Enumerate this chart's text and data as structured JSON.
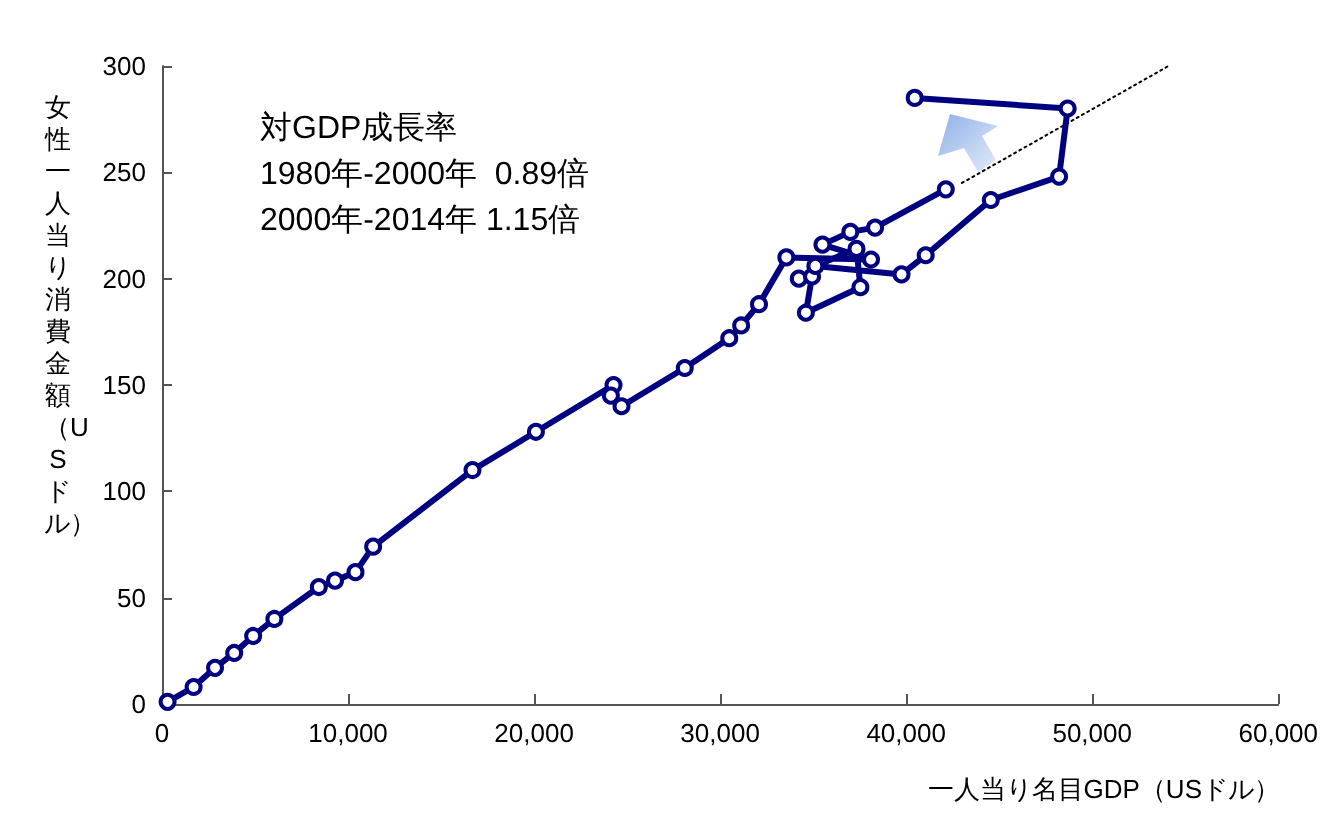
{
  "chart_data": {
    "type": "line",
    "xlabel": "一人当り名目GDP（USドル）",
    "ylabel": "女性一人当り消費金額（USドル）",
    "annotations": [
      "対GDP成長率",
      "1980年-2000年  0.89倍",
      "2000年-2014年 1.15倍"
    ],
    "series": [
      {
        "color": "#000080",
        "marker": "circle",
        "line_style": "solid",
        "x": [
          300,
          1700,
          2850,
          3880,
          4900,
          6040,
          8430,
          9300,
          10400,
          11350,
          16690,
          20100,
          24270,
          24130,
          24700,
          28100,
          30490,
          31130,
          32090,
          33560,
          38110,
          35500,
          37000,
          38330,
          42130,
          35650,
          34230,
          34940,
          34610,
          37540,
          37330,
          35120,
          39750,
          41050,
          44550,
          48220,
          48680,
          40460
        ],
        "values": [
          1,
          8,
          17,
          24,
          32,
          40,
          55,
          58,
          62,
          74,
          110,
          128,
          150,
          145,
          140,
          158,
          172,
          178,
          188,
          210,
          209,
          216,
          222,
          224,
          242,
          null,
          200,
          201,
          184,
          196,
          214,
          206,
          202,
          211,
          237,
          248,
          280,
          285
        ]
      },
      {
        "type": "line",
        "color": "#000000",
        "marker": "none",
        "line_style": "dotted",
        "x": [
          43000,
          54100
        ],
        "values": [
          245,
          300
        ]
      }
    ],
    "xlim": [
      0,
      60000
    ],
    "xticks": [
      {
        "value": 0,
        "label": "0"
      },
      {
        "value": 10000,
        "label": "10,000"
      },
      {
        "value": 20000,
        "label": "20,000"
      },
      {
        "value": 30000,
        "label": "30,000"
      },
      {
        "value": 40000,
        "label": "40,000"
      },
      {
        "value": 50000,
        "label": "50,000"
      },
      {
        "value": 60000,
        "label": "60,000"
      }
    ],
    "ylim": [
      0,
      300
    ],
    "yticks": [
      0,
      50,
      100,
      150,
      200,
      250,
      300
    ],
    "grid": false
  }
}
